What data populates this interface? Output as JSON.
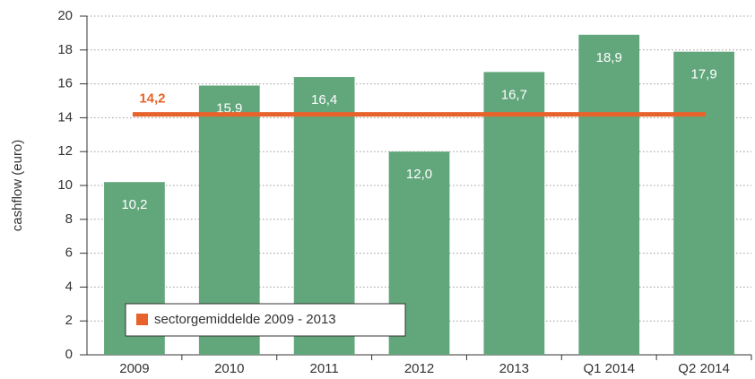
{
  "chart_data": {
    "type": "bar",
    "ylabel": "cashflow (euro)",
    "categories": [
      "2009",
      "2010",
      "2011",
      "2012",
      "2013",
      "Q1 2014",
      "Q2 2014"
    ],
    "values": [
      10.2,
      15.9,
      16.4,
      12.0,
      16.7,
      18.9,
      17.9
    ],
    "value_labels": [
      "10,2",
      "15,9",
      "16,4",
      "12,0",
      "16,7",
      "18,9",
      "17,9"
    ],
    "color": "#62a67c",
    "reference_line": {
      "name": "sectorgemiddelde 2009 - 2013",
      "value": 14.2,
      "label": "14,2",
      "color": "#e8632b"
    },
    "ylim": [
      0,
      20
    ],
    "yticks": [
      0,
      2,
      4,
      6,
      8,
      10,
      12,
      14,
      16,
      18,
      20
    ],
    "grid": true,
    "legend": "lower left"
  }
}
